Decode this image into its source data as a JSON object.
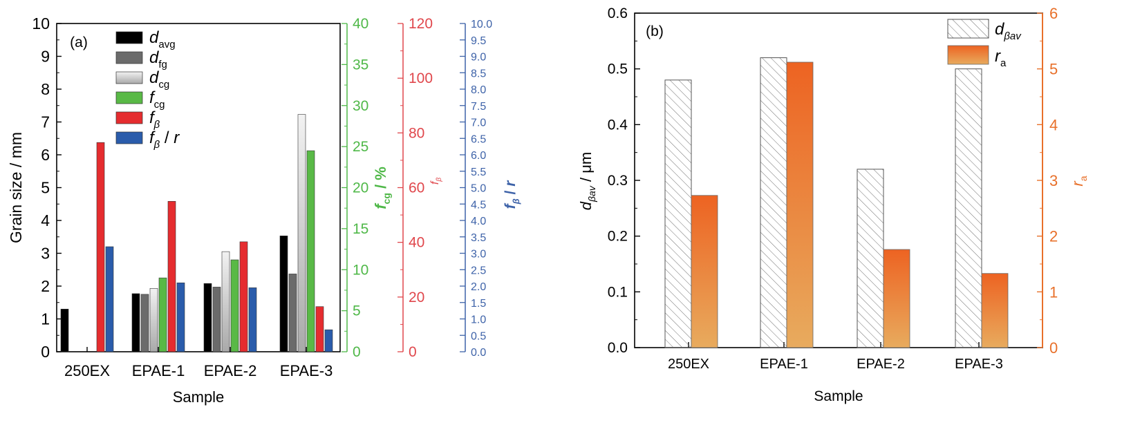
{
  "chart_data": [
    {
      "panel_label": "(a)",
      "type": "bar",
      "categories": [
        "250EX",
        "EPAE-1",
        "EPAE-2",
        "EPAE-3"
      ],
      "xlabel": "Sample",
      "ylabel": "Grain size / mm",
      "ylim": [
        0,
        10
      ],
      "yticks": [
        "0",
        "1",
        "2",
        "3",
        "4",
        "5",
        "6",
        "7",
        "8",
        "9",
        "10"
      ],
      "right_axes": [
        {
          "label_main": "f",
          "label_sub": "cg",
          "label_tail": " / %",
          "ylim": [
            0,
            40
          ],
          "ticks": [
            "0",
            "5",
            "10",
            "15",
            "20",
            "25",
            "30",
            "35",
            "40"
          ],
          "color": "#4fb848"
        },
        {
          "label_main": "f",
          "label_sub": "β",
          "label_tail": "",
          "ylim": [
            0,
            120
          ],
          "ticks": [
            "0",
            "20",
            "40",
            "60",
            "80",
            "100",
            "120"
          ],
          "color": "#e0474c"
        },
        {
          "label_main": "f",
          "label_sub": "β",
          "label_tail": " / r",
          "ylim": [
            0,
            10
          ],
          "ticks": [
            "0.0",
            "0.5",
            "1.0",
            "1.5",
            "2.0",
            "2.5",
            "3.0",
            "3.5",
            "4.0",
            "4.5",
            "5.0",
            "5.5",
            "6.0",
            "6.5",
            "7.0",
            "7.5",
            "8.0",
            "8.5",
            "9.0",
            "9.5",
            "10.0"
          ],
          "color": "#3d62a8"
        }
      ],
      "series": [
        {
          "name_main": "d",
          "name_sub": "avg",
          "color": "#000000",
          "axis": "left",
          "values": [
            1.3,
            1.77,
            2.08,
            3.53
          ]
        },
        {
          "name_main": "d",
          "name_sub": "fg",
          "color": "#6b6b6b",
          "axis": "left",
          "values": [
            null,
            1.75,
            1.97,
            2.37
          ]
        },
        {
          "name_main": "d",
          "name_sub": "cg",
          "color": "#c8c8c8",
          "axis": "left",
          "values": [
            null,
            1.93,
            3.05,
            7.23
          ]
        },
        {
          "name_main": "f",
          "name_sub": "cg",
          "color": "#59b946",
          "axis": "fcg",
          "values": [
            null,
            9.0,
            11.2,
            24.5
          ]
        },
        {
          "name_main": "f",
          "name_sub": "β",
          "color": "#e52c2f",
          "axis": "fbeta",
          "values": [
            76.5,
            55.0,
            40.2,
            16.5
          ]
        },
        {
          "name_main": "f",
          "name_sub": "β",
          "name_tail": " / r",
          "color": "#2a5cab",
          "axis": "fbr",
          "values": [
            3.2,
            2.1,
            1.95,
            0.67
          ]
        }
      ]
    },
    {
      "panel_label": "(b)",
      "type": "bar",
      "categories": [
        "250EX",
        "EPAE-1",
        "EPAE-2",
        "EPAE-3"
      ],
      "xlabel": "Sample",
      "ylabel_main": "d",
      "ylabel_sub": "βav",
      "ylabel_tail": " / μm",
      "ylim": [
        0,
        0.6
      ],
      "yticks": [
        "0.0",
        "0.1",
        "0.2",
        "0.3",
        "0.4",
        "0.5",
        "0.6"
      ],
      "y2label_main": "r",
      "y2label_sub": "a",
      "y2lim": [
        0,
        6
      ],
      "y2ticks": [
        "0",
        "1",
        "2",
        "3",
        "4",
        "5",
        "6"
      ],
      "y2color": "#e8702a",
      "series": [
        {
          "name_main": "d",
          "name_sub": "βav",
          "style": "hatched",
          "axis": "left",
          "values": [
            0.48,
            0.52,
            0.32,
            0.5
          ]
        },
        {
          "name_main": "r",
          "name_sub": "a",
          "style": "orange-gradient",
          "axis": "right",
          "values": [
            2.73,
            5.12,
            1.76,
            1.33
          ]
        }
      ]
    }
  ]
}
